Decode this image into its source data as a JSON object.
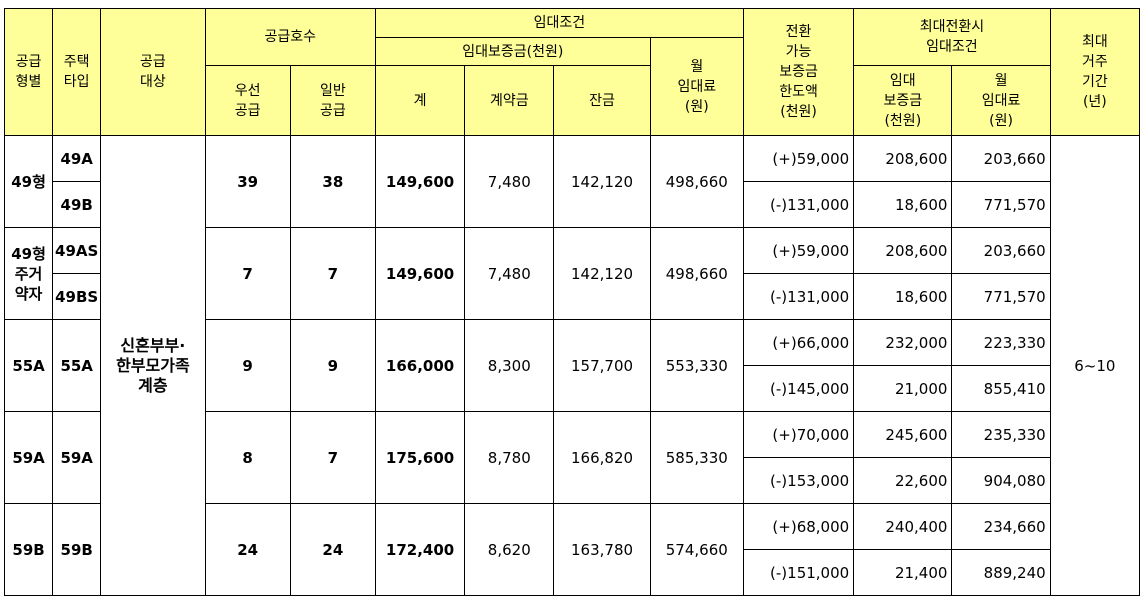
{
  "headers": {
    "supply_type": "공급\n형별",
    "housing_type": "주택\n타입",
    "supply_target": "공급\n대상",
    "supply_units": "공급호수",
    "priority": "우선\n공급",
    "general": "일반\n공급",
    "lease_conditions": "임대조건",
    "deposit": "임대보증금(천원)",
    "total": "계",
    "contract": "계약금",
    "balance": "잔금",
    "monthly_rent": "월\n임대료\n(원)",
    "convertible_limit": "전환\n가능\n보증금\n한도액\n(천원)",
    "max_conversion": "최대전환시\n임대조건",
    "max_deposit": "임대\n보증금\n(천원)",
    "max_rent": "월\n임대료\n(원)",
    "max_period": "최대\n거주\n기간\n(년)"
  },
  "target": "신혼부부·\n한부모가족\n계층",
  "max_period_value": "6~10",
  "groups": [
    {
      "supply_type": "49형",
      "housing_types": [
        "49A",
        "49B"
      ],
      "priority": "39",
      "general": "38",
      "total": "149,600",
      "contract": "7,480",
      "balance": "142,120",
      "rent": "498,660",
      "rows": [
        {
          "limit": "(+)59,000",
          "deposit": "208,600",
          "rent": "203,660"
        },
        {
          "limit": "(-)131,000",
          "deposit": "18,600",
          "rent": "771,570"
        }
      ]
    },
    {
      "supply_type": "49형\n주거\n약자",
      "housing_types": [
        "49AS",
        "49BS"
      ],
      "priority": "7",
      "general": "7",
      "total": "149,600",
      "contract": "7,480",
      "balance": "142,120",
      "rent": "498,660",
      "rows": [
        {
          "limit": "(+)59,000",
          "deposit": "208,600",
          "rent": "203,660"
        },
        {
          "limit": "(-)131,000",
          "deposit": "18,600",
          "rent": "771,570"
        }
      ]
    },
    {
      "supply_type": "55A",
      "housing_types": [
        "55A"
      ],
      "priority": "9",
      "general": "9",
      "total": "166,000",
      "contract": "8,300",
      "balance": "157,700",
      "rent": "553,330",
      "rows": [
        {
          "limit": "(+)66,000",
          "deposit": "232,000",
          "rent": "223,330"
        },
        {
          "limit": "(-)145,000",
          "deposit": "21,000",
          "rent": "855,410"
        }
      ]
    },
    {
      "supply_type": "59A",
      "housing_types": [
        "59A"
      ],
      "priority": "8",
      "general": "7",
      "total": "175,600",
      "contract": "8,780",
      "balance": "166,820",
      "rent": "585,330",
      "rows": [
        {
          "limit": "(+)70,000",
          "deposit": "245,600",
          "rent": "235,330"
        },
        {
          "limit": "(-)153,000",
          "deposit": "22,600",
          "rent": "904,080"
        }
      ]
    },
    {
      "supply_type": "59B",
      "housing_types": [
        "59B"
      ],
      "priority": "24",
      "general": "24",
      "total": "172,400",
      "contract": "8,620",
      "balance": "163,780",
      "rent": "574,660",
      "rows": [
        {
          "limit": "(+)68,000",
          "deposit": "240,400",
          "rent": "234,660"
        },
        {
          "limit": "(-)151,000",
          "deposit": "21,400",
          "rent": "889,240"
        }
      ]
    }
  ]
}
